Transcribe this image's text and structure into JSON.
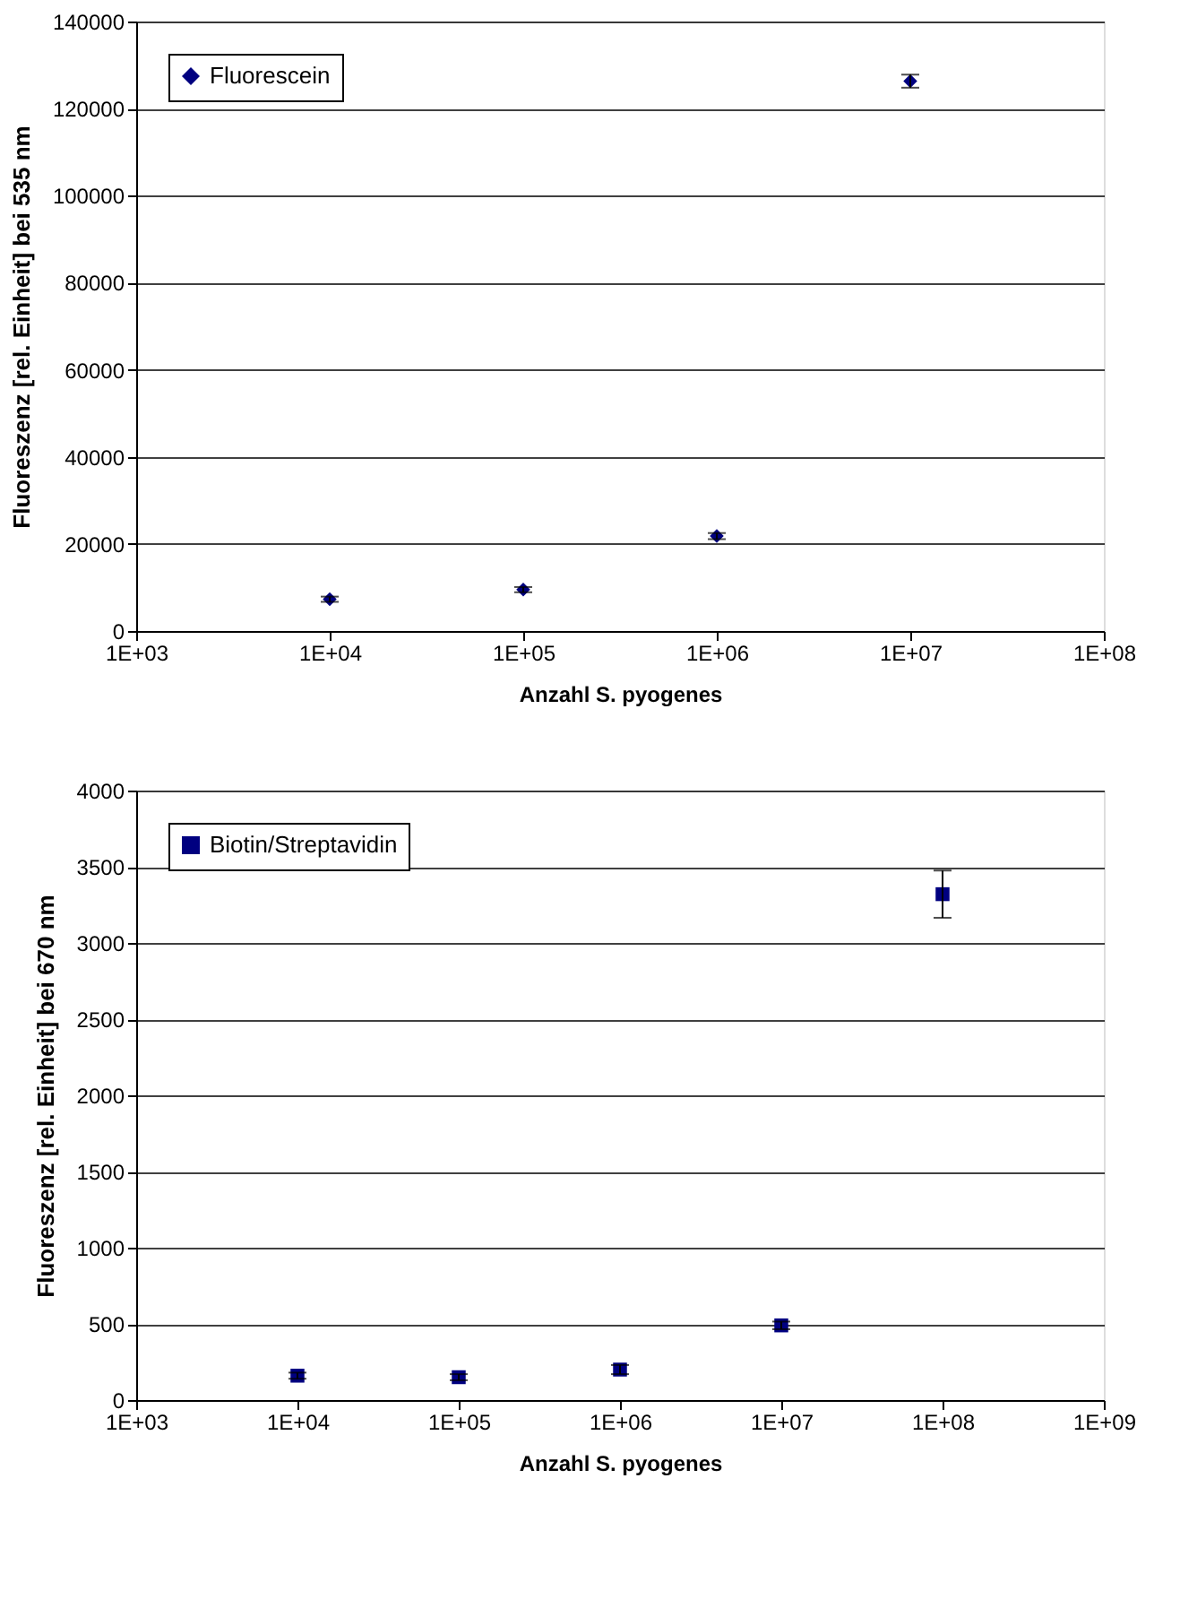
{
  "chart_data": [
    {
      "type": "scatter",
      "x": [
        10000,
        100000,
        1000000,
        10000000
      ],
      "xlabel": "Anzahl S. pyogenes",
      "ylabel": "Fluoreszenz [rel. Einheit] bei 535 nm",
      "series": [
        {
          "name": "Fluorescein",
          "color": "#000080",
          "values": [
            7300,
            9500,
            21800,
            126300
          ],
          "errors": [
            600,
            600,
            700,
            1500
          ]
        }
      ],
      "log": "x",
      "xlim": [
        1000,
        100000000
      ],
      "xticks": [
        {
          "value": 1000,
          "label": "1E+03"
        },
        {
          "value": 10000,
          "label": "1E+04"
        },
        {
          "value": 100000,
          "label": "1E+05"
        },
        {
          "value": 1000000,
          "label": "1E+06"
        },
        {
          "value": 10000000,
          "label": "1E+07"
        },
        {
          "value": 100000000,
          "label": "1E+08"
        }
      ],
      "ylim": [
        0,
        140000
      ],
      "yticks": [
        0,
        20000,
        40000,
        60000,
        80000,
        100000,
        120000,
        140000
      ],
      "grid": "y",
      "legend": "top left",
      "marker": "diamond"
    },
    {
      "type": "scatter",
      "x": [
        10000,
        100000,
        1000000,
        10000000,
        100000000
      ],
      "xlabel": "Anzahl S. pyogenes",
      "ylabel": "Fluoreszenz [rel. Einheit] bei 670 nm",
      "series": [
        {
          "name": "Biotin/Streptavidin",
          "color": "#000080",
          "values": [
            160,
            150,
            200,
            490,
            3320
          ],
          "errors": [
            20,
            20,
            30,
            25,
            155
          ]
        }
      ],
      "log": "x",
      "xlim": [
        1000,
        1000000000
      ],
      "xticks": [
        {
          "value": 1000,
          "label": "1E+03"
        },
        {
          "value": 10000,
          "label": "1E+04"
        },
        {
          "value": 100000,
          "label": "1E+05"
        },
        {
          "value": 1000000,
          "label": "1E+06"
        },
        {
          "value": 10000000,
          "label": "1E+07"
        },
        {
          "value": 100000000,
          "label": "1E+08"
        },
        {
          "value": 1000000000,
          "label": "1E+09"
        }
      ],
      "ylim": [
        0,
        4000
      ],
      "yticks": [
        0,
        500,
        1000,
        1500,
        2000,
        2500,
        3000,
        3500,
        4000
      ],
      "grid": "y",
      "legend": "top left",
      "marker": "square"
    }
  ]
}
